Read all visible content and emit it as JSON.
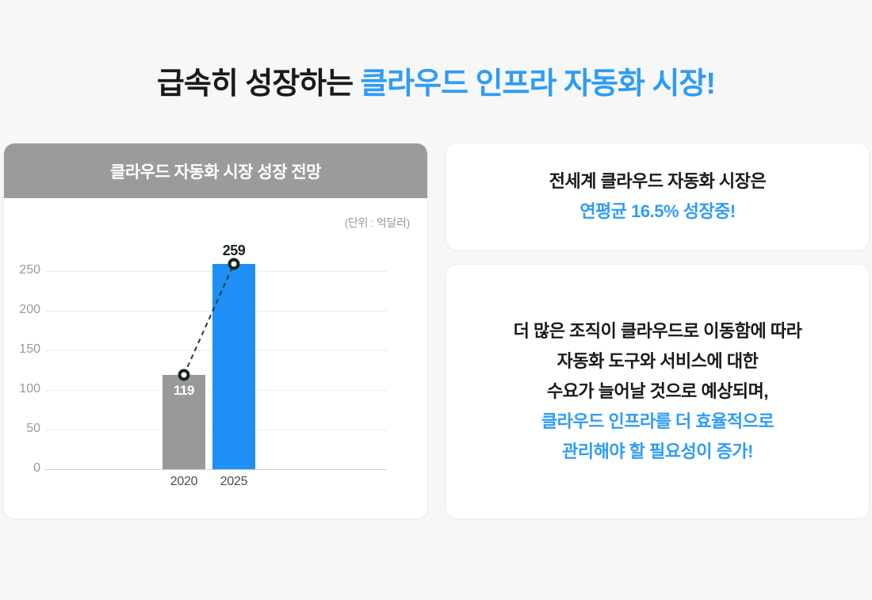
{
  "title": {
    "black": "급속히 성장하는",
    "blue": "클라우드 인프라 자동화 시장!"
  },
  "chart_card": {
    "header": "클라우드 자동화 시장 성장 전망",
    "unit_label": "(단위 : 억달러)"
  },
  "chart_data": {
    "type": "bar",
    "title": "클라우드 자동화 시장 성장 전망",
    "unit": "억달러",
    "categories": [
      "2020",
      "2025"
    ],
    "values": [
      119,
      259
    ],
    "bar_colors": [
      "#999999",
      "#1E90F5"
    ],
    "value_label_positions": [
      "inside",
      "above"
    ],
    "value_label_colors": [
      "#FFFFFF",
      "#15271D"
    ],
    "yticks": [
      0,
      50,
      100,
      150,
      200,
      250
    ],
    "ylim": [
      0,
      250
    ],
    "grid": true,
    "legend": false,
    "connector": {
      "style": "dashed",
      "marker": "ring",
      "line_color": "#2A3A30",
      "ring_color": "#15271D"
    }
  },
  "info_cards": {
    "top": {
      "lines": [
        {
          "text": "전세계 클라우드 자동화 시장은",
          "style": "dark"
        },
        {
          "text": "연평균 16.5% 성장중!",
          "style": "blue"
        }
      ]
    },
    "bottom": {
      "lines": [
        {
          "text": "더 많은 조직이 클라우드로 이동함에 따라",
          "style": "dark"
        },
        {
          "text": "자동화 도구와 서비스에 대한",
          "style": "dark"
        },
        {
          "text": "수요가 늘어날 것으로 예상되며,",
          "style": "dark"
        },
        {
          "text": "클라우드 인프라를 더 효율적으로",
          "style": "blue"
        },
        {
          "text": "관리해야 할 필요성이 증가!",
          "style": "blue"
        }
      ]
    }
  },
  "colors": {
    "accent_blue": "#2F9CF6",
    "bar_blue": "#1E90F5",
    "bar_gray": "#999999",
    "header_gray": "#9B9B9B",
    "text_dark": "#1A1A1A",
    "axis_label": "#9A9A9A",
    "background": "#F7F7F7"
  }
}
